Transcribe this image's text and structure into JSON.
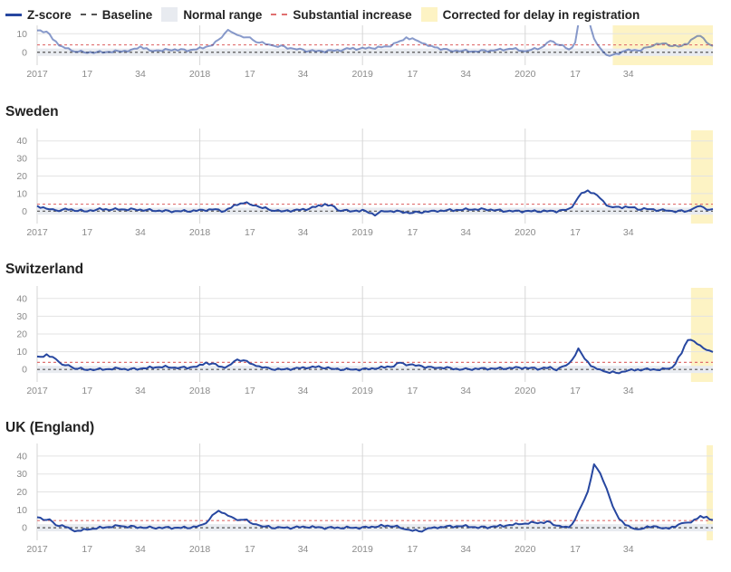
{
  "legend": {
    "zscore": "Z-score",
    "baseline": "Baseline",
    "normal_range": "Normal range",
    "substantial": "Substantial increase",
    "corrected": "Corrected for delay in registration"
  },
  "colors": {
    "zscore": "#2747a0",
    "baseline": "#555555",
    "normal_range": "#e8ebf0",
    "substantial": "#e07070",
    "corrected": "#fdf3c4",
    "grid": "#e3e3e3",
    "year_line": "#d6d6d6"
  },
  "chart_data": [
    {
      "type": "line",
      "title": "",
      "x_tick_labels": [
        "2017",
        "17",
        "34",
        "2018",
        "17",
        "34",
        "2019",
        "17",
        "34",
        "2020",
        "17",
        "34"
      ],
      "y_ticks": [
        0,
        10
      ],
      "ylim": [
        -5,
        15
      ],
      "normal_range": [
        -2,
        2
      ],
      "baseline": 0,
      "substantial_increase": 4,
      "corrected_from_week": 184,
      "keypoints": [
        [
          0,
          12
        ],
        [
          3,
          11
        ],
        [
          5,
          7
        ],
        [
          8,
          3
        ],
        [
          11,
          1
        ],
        [
          15,
          0
        ],
        [
          20,
          0
        ],
        [
          26,
          0.5
        ],
        [
          30,
          1
        ],
        [
          33,
          3
        ],
        [
          36,
          1
        ],
        [
          40,
          1
        ],
        [
          44,
          1.5
        ],
        [
          48,
          1
        ],
        [
          52,
          2
        ],
        [
          56,
          4
        ],
        [
          58,
          7
        ],
        [
          61,
          12
        ],
        [
          64,
          9
        ],
        [
          67,
          8
        ],
        [
          70,
          6
        ],
        [
          74,
          4
        ],
        [
          78,
          3
        ],
        [
          82,
          2
        ],
        [
          86,
          1
        ],
        [
          90,
          0.5
        ],
        [
          96,
          1
        ],
        [
          100,
          2
        ],
        [
          104,
          2
        ],
        [
          108,
          2.5
        ],
        [
          112,
          3
        ],
        [
          116,
          6
        ],
        [
          118,
          8
        ],
        [
          122,
          6
        ],
        [
          126,
          3
        ],
        [
          132,
          1
        ],
        [
          140,
          0.5
        ],
        [
          146,
          1
        ],
        [
          152,
          2
        ],
        [
          156,
          0.5
        ],
        [
          162,
          3
        ],
        [
          164,
          6
        ],
        [
          166,
          5
        ],
        [
          170,
          1.5
        ],
        [
          172,
          5
        ],
        [
          174,
          25
        ],
        [
          176,
          20
        ],
        [
          178,
          7
        ],
        [
          180,
          2
        ],
        [
          182,
          -1
        ],
        [
          184,
          -2
        ],
        [
          188,
          1
        ],
        [
          192,
          1
        ],
        [
          196,
          3
        ],
        [
          198,
          5
        ],
        [
          202,
          4
        ],
        [
          206,
          3
        ],
        [
          208,
          5
        ],
        [
          210,
          8
        ],
        [
          212,
          9
        ],
        [
          214,
          6
        ],
        [
          216,
          3
        ]
      ]
    },
    {
      "type": "line",
      "title": "Sweden",
      "x_tick_labels": [
        "2017",
        "17",
        "34",
        "2018",
        "17",
        "34",
        "2019",
        "17",
        "34",
        "2020",
        "17",
        "34"
      ],
      "y_ticks": [
        0,
        10,
        20,
        30,
        40
      ],
      "ylim": [
        -5,
        45
      ],
      "normal_range": [
        -2,
        2
      ],
      "baseline": 0,
      "substantial_increase": 4,
      "corrected_from_week": 209,
      "keypoints": [
        [
          0,
          3
        ],
        [
          3,
          1.5
        ],
        [
          6,
          0.5
        ],
        [
          10,
          1
        ],
        [
          15,
          0
        ],
        [
          20,
          1
        ],
        [
          26,
          1
        ],
        [
          30,
          1
        ],
        [
          36,
          0.5
        ],
        [
          42,
          0
        ],
        [
          48,
          0
        ],
        [
          52,
          0.5
        ],
        [
          56,
          1
        ],
        [
          60,
          0
        ],
        [
          62,
          2
        ],
        [
          64,
          4
        ],
        [
          66,
          5
        ],
        [
          68,
          4
        ],
        [
          70,
          3
        ],
        [
          74,
          1
        ],
        [
          78,
          0
        ],
        [
          82,
          0.5
        ],
        [
          86,
          1
        ],
        [
          90,
          3
        ],
        [
          92,
          4
        ],
        [
          94,
          3
        ],
        [
          96,
          1
        ],
        [
          100,
          0
        ],
        [
          104,
          0.5
        ],
        [
          108,
          -2
        ],
        [
          110,
          0
        ],
        [
          114,
          0
        ],
        [
          120,
          -1
        ],
        [
          126,
          0
        ],
        [
          132,
          0.5
        ],
        [
          138,
          1
        ],
        [
          144,
          1
        ],
        [
          150,
          0
        ],
        [
          156,
          0
        ],
        [
          162,
          0
        ],
        [
          166,
          0
        ],
        [
          170,
          1
        ],
        [
          172,
          5
        ],
        [
          174,
          10
        ],
        [
          176,
          12
        ],
        [
          178,
          10
        ],
        [
          180,
          7
        ],
        [
          182,
          4
        ],
        [
          184,
          2
        ],
        [
          188,
          2.5
        ],
        [
          192,
          1.5
        ],
        [
          196,
          1
        ],
        [
          200,
          0.5
        ],
        [
          204,
          0
        ],
        [
          208,
          0
        ],
        [
          210,
          2
        ],
        [
          212,
          3
        ],
        [
          214,
          1.5
        ],
        [
          216,
          0.5
        ]
      ]
    },
    {
      "type": "line",
      "title": "Switzerland",
      "x_tick_labels": [
        "2017",
        "17",
        "34",
        "2018",
        "17",
        "34",
        "2019",
        "17",
        "34",
        "2020",
        "17",
        "34"
      ],
      "y_ticks": [
        0,
        10,
        20,
        30,
        40
      ],
      "ylim": [
        -5,
        45
      ],
      "normal_range": [
        -2,
        2
      ],
      "baseline": 0,
      "substantial_increase": 4,
      "corrected_from_week": 209,
      "keypoints": [
        [
          0,
          7
        ],
        [
          3,
          8
        ],
        [
          6,
          6
        ],
        [
          8,
          3
        ],
        [
          12,
          1
        ],
        [
          15,
          0
        ],
        [
          20,
          0
        ],
        [
          26,
          0.5
        ],
        [
          30,
          0
        ],
        [
          36,
          1
        ],
        [
          40,
          1.5
        ],
        [
          44,
          1
        ],
        [
          48,
          1
        ],
        [
          52,
          2
        ],
        [
          54,
          4
        ],
        [
          56,
          3
        ],
        [
          60,
          1
        ],
        [
          62,
          3
        ],
        [
          64,
          6
        ],
        [
          66,
          5
        ],
        [
          70,
          2
        ],
        [
          74,
          0.5
        ],
        [
          78,
          0
        ],
        [
          82,
          0.5
        ],
        [
          86,
          1
        ],
        [
          90,
          1.5
        ],
        [
          94,
          0.5
        ],
        [
          98,
          0
        ],
        [
          104,
          0
        ],
        [
          110,
          1
        ],
        [
          114,
          2
        ],
        [
          116,
          4
        ],
        [
          118,
          3
        ],
        [
          122,
          2
        ],
        [
          126,
          1
        ],
        [
          130,
          1
        ],
        [
          136,
          0
        ],
        [
          142,
          0.5
        ],
        [
          148,
          0.5
        ],
        [
          154,
          1
        ],
        [
          160,
          0.5
        ],
        [
          164,
          1
        ],
        [
          166,
          0
        ],
        [
          170,
          3
        ],
        [
          172,
          8
        ],
        [
          173,
          12
        ],
        [
          175,
          6
        ],
        [
          178,
          1
        ],
        [
          181,
          -1
        ],
        [
          185,
          -2
        ],
        [
          188,
          -1
        ],
        [
          192,
          0
        ],
        [
          196,
          0
        ],
        [
          200,
          0
        ],
        [
          203,
          1
        ],
        [
          206,
          9
        ],
        [
          208,
          17
        ],
        [
          210,
          16
        ],
        [
          212,
          13
        ],
        [
          214,
          11
        ],
        [
          216,
          10
        ]
      ]
    },
    {
      "type": "line",
      "title": "UK (England)",
      "x_tick_labels": [
        "2017",
        "17",
        "34",
        "2018",
        "17",
        "34",
        "2019",
        "17",
        "34",
        "2020",
        "17",
        "34"
      ],
      "y_ticks": [
        0,
        10,
        20,
        30,
        40
      ],
      "ylim": [
        -5,
        45
      ],
      "normal_range": [
        -2,
        2
      ],
      "baseline": 0,
      "substantial_increase": 4,
      "corrected_from_week": 214,
      "keypoints": [
        [
          0,
          6
        ],
        [
          2,
          5
        ],
        [
          4,
          4
        ],
        [
          6,
          2
        ],
        [
          10,
          0
        ],
        [
          12,
          -2
        ],
        [
          16,
          -1
        ],
        [
          20,
          0
        ],
        [
          26,
          1
        ],
        [
          30,
          0.5
        ],
        [
          36,
          0
        ],
        [
          40,
          0
        ],
        [
          44,
          0
        ],
        [
          48,
          0
        ],
        [
          52,
          1
        ],
        [
          54,
          3
        ],
        [
          56,
          7
        ],
        [
          58,
          9
        ],
        [
          60,
          8
        ],
        [
          62,
          6
        ],
        [
          64,
          4
        ],
        [
          66,
          5
        ],
        [
          68,
          3
        ],
        [
          72,
          1
        ],
        [
          76,
          0
        ],
        [
          80,
          0
        ],
        [
          86,
          0.5
        ],
        [
          92,
          0
        ],
        [
          98,
          0
        ],
        [
          104,
          0
        ],
        [
          110,
          1
        ],
        [
          114,
          1
        ],
        [
          118,
          -1
        ],
        [
          122,
          -2
        ],
        [
          126,
          0
        ],
        [
          130,
          0.5
        ],
        [
          136,
          1
        ],
        [
          142,
          0
        ],
        [
          148,
          1
        ],
        [
          154,
          2
        ],
        [
          160,
          3
        ],
        [
          164,
          3
        ],
        [
          166,
          1
        ],
        [
          170,
          0
        ],
        [
          172,
          5
        ],
        [
          174,
          12
        ],
        [
          176,
          20
        ],
        [
          178,
          35
        ],
        [
          180,
          30
        ],
        [
          182,
          22
        ],
        [
          184,
          12
        ],
        [
          186,
          5
        ],
        [
          188,
          2
        ],
        [
          190,
          0
        ],
        [
          192,
          -1
        ],
        [
          194,
          0
        ],
        [
          198,
          1
        ],
        [
          200,
          -1
        ],
        [
          202,
          0
        ],
        [
          206,
          2
        ],
        [
          210,
          4
        ],
        [
          212,
          6
        ],
        [
          214,
          6
        ],
        [
          216,
          4
        ]
      ]
    }
  ]
}
